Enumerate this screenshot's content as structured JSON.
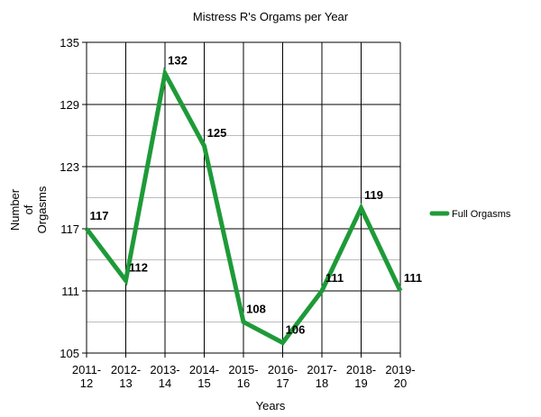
{
  "chart_data": {
    "type": "line",
    "title": "Mistress R's Orgams per Year",
    "xlabel": "Years",
    "ylabel_lines": [
      "Number",
      "of",
      "Orgasms"
    ],
    "categories": [
      [
        "2011-",
        "12"
      ],
      [
        "2012-",
        "13"
      ],
      [
        "2013-",
        "14"
      ],
      [
        "2014-",
        "15"
      ],
      [
        "2015-",
        "16"
      ],
      [
        "2016-",
        "17"
      ],
      [
        "2017-",
        "18"
      ],
      [
        "2018-",
        "19"
      ],
      [
        "2019-",
        "20"
      ]
    ],
    "series": [
      {
        "name": "Full Orgasms",
        "color": "#1e9a38",
        "values": [
          117,
          112,
          132,
          125,
          108,
          106,
          111,
          119,
          111
        ]
      }
    ],
    "ylim": [
      105,
      135
    ],
    "yticks": [
      105,
      111,
      117,
      123,
      129,
      135
    ],
    "minor_gridlines": [
      108,
      114,
      120,
      126,
      132
    ],
    "grid": true,
    "legend_position": "right"
  }
}
